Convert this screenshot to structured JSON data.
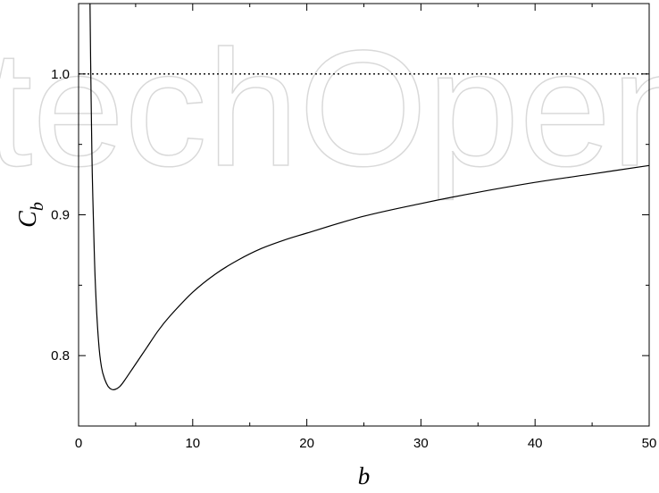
{
  "chart_data": {
    "type": "line",
    "title": "",
    "xlabel": "b",
    "ylabel_main": "C",
    "ylabel_sub": "b",
    "xlim": [
      0,
      50
    ],
    "ylim": [
      0.75,
      1.05
    ],
    "xticks": [
      0,
      10,
      20,
      30,
      40,
      50
    ],
    "xtick_labels": [
      "0",
      "10",
      "20",
      "30",
      "40",
      "50"
    ],
    "yticks": [
      0.8,
      0.9,
      1.0
    ],
    "ytick_labels": [
      "0.8",
      "0.9",
      "1.0"
    ],
    "grid": false,
    "reference_line": {
      "y": 1.0,
      "style": "dotted"
    },
    "series": [
      {
        "x": [
          1.0,
          1.1,
          1.2,
          1.35,
          1.5,
          1.75,
          2.0,
          2.3,
          2.6,
          2.9,
          3.2,
          3.6,
          4.0,
          5.0,
          6.0,
          7.0,
          8.0,
          10.0,
          12.0,
          14.0,
          16.0,
          18.0,
          20.0,
          25.0,
          30.0,
          35.0,
          40.0,
          45.0,
          50.0
        ],
        "y": [
          1.06,
          0.98,
          0.93,
          0.88,
          0.845,
          0.81,
          0.792,
          0.783,
          0.778,
          0.776,
          0.776,
          0.778,
          0.782,
          0.794,
          0.806,
          0.818,
          0.828,
          0.845,
          0.858,
          0.868,
          0.876,
          0.882,
          0.887,
          0.899,
          0.908,
          0.916,
          0.923,
          0.929,
          0.935
        ],
        "color": "#000000"
      }
    ],
    "watermark": "techOpen"
  }
}
